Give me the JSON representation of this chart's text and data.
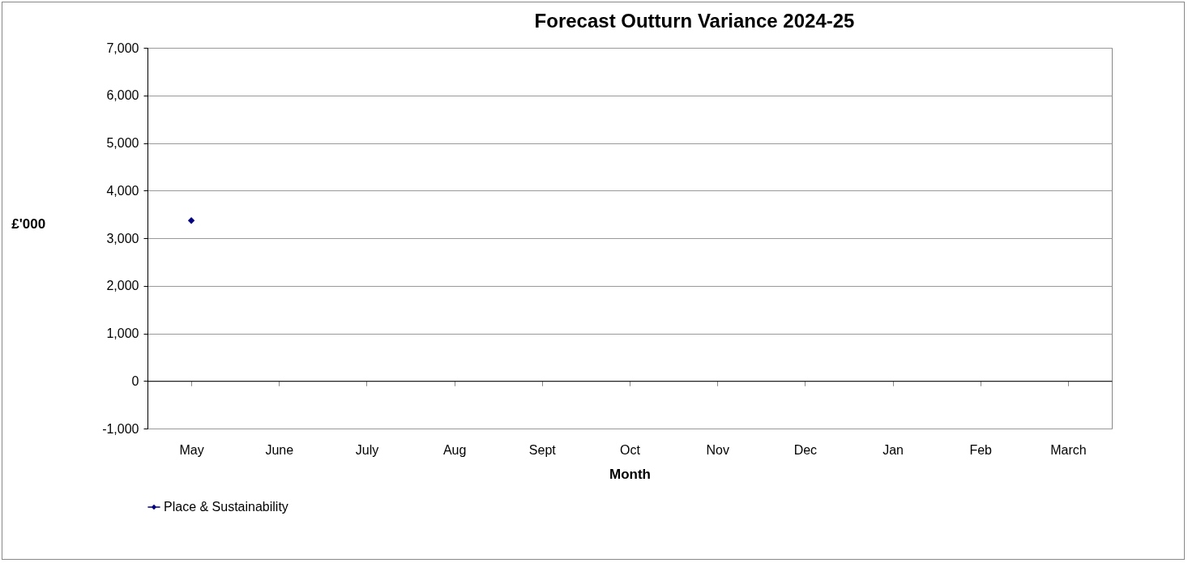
{
  "chart_data": {
    "type": "line",
    "title": "Forecast Outturn Variance 2024-25",
    "xlabel": "Month",
    "ylabel": "£'000",
    "categories": [
      "May",
      "June",
      "July",
      "Aug",
      "Sept",
      "Oct",
      "Nov",
      "Dec",
      "Jan",
      "Feb",
      "March"
    ],
    "series": [
      {
        "name": "Place & Sustainability",
        "color": "#000080",
        "values": [
          3370,
          null,
          null,
          null,
          null,
          null,
          null,
          null,
          null,
          null,
          null
        ]
      }
    ],
    "ylim": [
      -1000,
      7000
    ],
    "yticks": [
      {
        "value": -1000,
        "label": "-1,000"
      },
      0,
      {
        "value": 1000,
        "label": "1,000"
      },
      {
        "value": 2000,
        "label": "2,000"
      },
      {
        "value": 3000,
        "label": "3,000"
      },
      {
        "value": 4000,
        "label": "4,000"
      },
      {
        "value": 5000,
        "label": "5,000"
      },
      {
        "value": 6000,
        "label": "6,000"
      },
      {
        "value": 7000,
        "label": "7,000"
      }
    ],
    "grid": "y",
    "legend": "bottom",
    "marker": "diamond",
    "line_style": "solid"
  }
}
